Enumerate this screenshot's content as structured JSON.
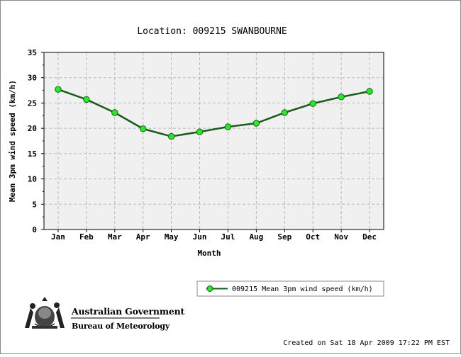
{
  "chart_data": {
    "type": "line",
    "title": "Location: 009215 SWANBOURNE",
    "xlabel": "Month",
    "ylabel": "Mean 3pm wind speed (km/h)",
    "categories": [
      "Jan",
      "Feb",
      "Mar",
      "Apr",
      "May",
      "Jun",
      "Jul",
      "Aug",
      "Sep",
      "Oct",
      "Nov",
      "Dec"
    ],
    "series": [
      {
        "name": "009215 Mean 3pm wind speed (km/h)",
        "values": [
          27.7,
          25.7,
          23.1,
          19.9,
          18.4,
          19.3,
          20.3,
          21.0,
          23.1,
          24.9,
          26.2,
          27.3
        ],
        "color": "#1a5c1a",
        "marker_color": "#22ee22"
      }
    ],
    "ylim": [
      0,
      35
    ],
    "yticks": [
      0,
      5,
      10,
      15,
      20,
      25,
      30,
      35
    ],
    "grid": true,
    "legend_position": "bottom-right"
  },
  "logo": {
    "line1": "Australian Government",
    "line2": "Bureau of Meteorology"
  },
  "footer": {
    "created": "Created on Sat 18 Apr 2009 17:22 PM EST"
  }
}
